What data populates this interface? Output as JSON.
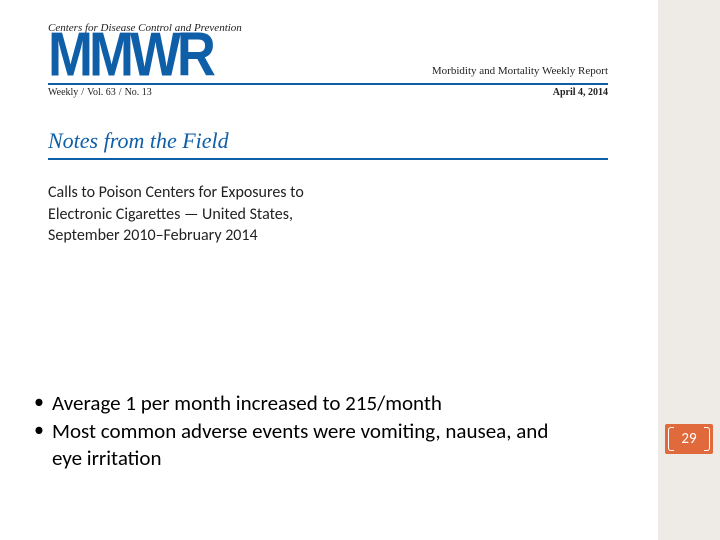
{
  "header": {
    "cdc_line": "Centers for Disease Control and Prevention",
    "logo_text": "MMWR",
    "logo_color": "#0e5ea8",
    "morbidity_line": "Morbidity and Mortality Weekly Report",
    "issue_prefix": "Weekly",
    "volume": "Vol. 63",
    "number": "No. 13",
    "date": "April 4, 2014",
    "rule_color": "#0e5ea8"
  },
  "section": {
    "title": "Notes from the Field",
    "title_color": "#0e5ea8",
    "article_title_line1": "Calls to Poison Centers for Exposures to",
    "article_title_line2": "Electronic Cigarettes — United States,",
    "article_title_line3": "September 2010–February 2014"
  },
  "bullets": {
    "items": [
      "Average 1 per month increased to 215/month",
      "Most common adverse events were vomiting, nausea, and eye irritation"
    ]
  },
  "page": {
    "number": "29",
    "badge_bg": "#e06a3b",
    "badge_fg": "#ffffff"
  },
  "side_strip_color": "#cdc4b8",
  "background_color": "#ffffff"
}
